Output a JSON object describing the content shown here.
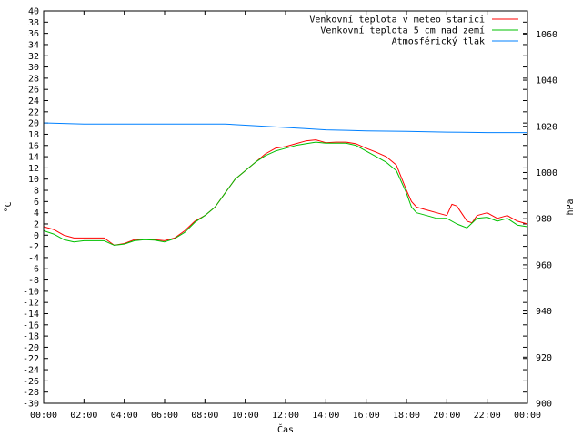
{
  "chart_data": {
    "type": "line",
    "xlabel": "Čas",
    "ylabel_left": "°C",
    "ylabel_right": "hPa",
    "x_ticks": [
      "00:00",
      "02:00",
      "04:00",
      "06:00",
      "08:00",
      "10:00",
      "12:00",
      "14:00",
      "16:00",
      "18:00",
      "20:00",
      "22:00",
      "00:00"
    ],
    "xlim_hours": [
      0,
      24
    ],
    "ylim_left": [
      -30,
      40
    ],
    "ylim_right": [
      900,
      1070
    ],
    "y_left_ticks": [
      -30,
      -28,
      -26,
      -24,
      -22,
      -20,
      -18,
      -16,
      -14,
      -12,
      -10,
      -8,
      -6,
      -4,
      -2,
      0,
      2,
      4,
      6,
      8,
      10,
      12,
      14,
      16,
      18,
      20,
      22,
      24,
      26,
      28,
      30,
      32,
      34,
      36,
      38,
      40
    ],
    "y_right_ticks": [
      900,
      920,
      940,
      960,
      980,
      1000,
      1020,
      1040,
      1060
    ],
    "legend_position": "top-right",
    "grid": false,
    "series": [
      {
        "name": "Venkovní teplota v meteo stanici",
        "color": "#ff0000",
        "axis": "left",
        "x": [
          0,
          0.5,
          1,
          1.5,
          2,
          2.5,
          3,
          3.5,
          4,
          4.5,
          5,
          5.5,
          6,
          6.5,
          7,
          7.5,
          8,
          8.5,
          9,
          9.5,
          10,
          10.5,
          11,
          11.5,
          12,
          12.5,
          13,
          13.5,
          14,
          14.5,
          15,
          15.5,
          16,
          16.5,
          17,
          17.5,
          18,
          18.25,
          18.5,
          19,
          19.5,
          20,
          20.25,
          20.5,
          21,
          21.25,
          21.5,
          22,
          22.5,
          23,
          23.5,
          24
        ],
        "values": [
          1.5,
          1.0,
          0,
          -0.5,
          -0.5,
          -0.5,
          -0.5,
          -1.8,
          -1.5,
          -0.8,
          -0.7,
          -0.8,
          -1.0,
          -0.5,
          0.8,
          2.5,
          3.5,
          5.0,
          7.5,
          10.0,
          11.5,
          13.0,
          14.5,
          15.5,
          15.8,
          16.3,
          16.8,
          17.0,
          16.5,
          16.6,
          16.6,
          16.3,
          15.5,
          14.8,
          14.0,
          12.5,
          8.0,
          6.0,
          5.0,
          4.5,
          4.0,
          3.5,
          5.5,
          5.2,
          2.5,
          2.2,
          3.5,
          4.0,
          3.0,
          3.5,
          2.5,
          2.0
        ]
      },
      {
        "name": "Venkovní teplota 5 cm nad zemí",
        "color": "#00c000",
        "axis": "left",
        "x": [
          0,
          0.5,
          1,
          1.5,
          2,
          2.5,
          3,
          3.5,
          4,
          4.5,
          5,
          5.5,
          6,
          6.5,
          7,
          7.5,
          8,
          8.5,
          9,
          9.5,
          10,
          10.5,
          11,
          11.5,
          12,
          12.5,
          13,
          13.5,
          14,
          14.5,
          15,
          15.5,
          16,
          16.5,
          17,
          17.5,
          18,
          18.25,
          18.5,
          19,
          19.5,
          20,
          20.5,
          21,
          21.5,
          22,
          22.5,
          23,
          23.5,
          24
        ],
        "values": [
          0.8,
          0.2,
          -0.8,
          -1.2,
          -1.0,
          -1.0,
          -1.0,
          -1.8,
          -1.6,
          -1.0,
          -0.8,
          -0.9,
          -1.2,
          -0.6,
          0.5,
          2.3,
          3.5,
          5.0,
          7.5,
          10.0,
          11.5,
          13.0,
          14.2,
          15.0,
          15.5,
          16.0,
          16.3,
          16.6,
          16.4,
          16.4,
          16.4,
          16.0,
          15.0,
          14.0,
          13.0,
          11.5,
          7.5,
          5.0,
          4.0,
          3.5,
          3.0,
          3.0,
          2.0,
          1.3,
          3.0,
          3.2,
          2.5,
          3.0,
          1.8,
          1.5
        ]
      },
      {
        "name": "Atmosférický tlak",
        "color": "#0080ff",
        "axis": "right",
        "x": [
          0,
          2,
          4,
          6,
          8,
          9,
          10,
          11,
          12,
          13,
          14,
          15,
          16,
          18,
          20,
          22,
          24
        ],
        "values": [
          1021.5,
          1021.0,
          1021.0,
          1021.0,
          1021.0,
          1021.0,
          1020.5,
          1020.0,
          1019.5,
          1019.0,
          1018.5,
          1018.3,
          1018.0,
          1017.8,
          1017.5,
          1017.3,
          1017.3
        ]
      }
    ]
  }
}
